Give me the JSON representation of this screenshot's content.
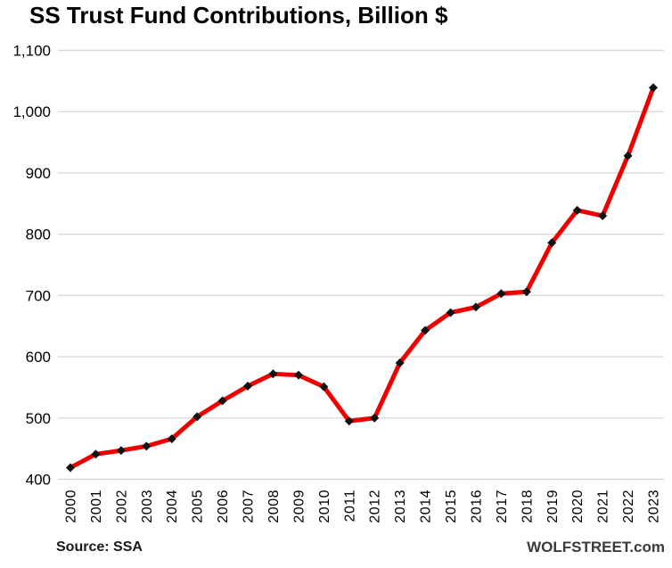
{
  "title": "SS Trust Fund Contributions, Billion $",
  "footer": {
    "source": "Source: SSA",
    "brand": "WOLFSTREET.com"
  },
  "chart_data": {
    "type": "line",
    "title": "SS Trust Fund Contributions, Billion $",
    "x": [
      2000,
      2001,
      2002,
      2003,
      2004,
      2005,
      2006,
      2007,
      2008,
      2009,
      2010,
      2011,
      2012,
      2013,
      2014,
      2015,
      2016,
      2017,
      2018,
      2019,
      2020,
      2021,
      2022,
      2023
    ],
    "series": [
      {
        "name": "SS Trust Fund Contributions, Billion $",
        "values": [
          419,
          441,
          447,
          454,
          466,
          502,
          528,
          552,
          572,
          570,
          551,
          495,
          500,
          590,
          643,
          672,
          681,
          703,
          706,
          786,
          839,
          830,
          928,
          1039
        ]
      }
    ],
    "xlabel": "",
    "ylabel": "",
    "ylim": [
      400,
      1100
    ],
    "yticks": [
      400,
      500,
      600,
      700,
      800,
      900,
      1000,
      1100
    ],
    "grid": "horizontal",
    "legend": "none",
    "colors": {
      "line": "#ee0000",
      "marker": "#111111",
      "gridline": "#d9d9d9",
      "tick_text": "#000000",
      "brand_text": "#3a3a3a"
    },
    "marker_shape": "diamond",
    "source": "Source: SSA",
    "brand": "WOLFSTREET.com"
  }
}
